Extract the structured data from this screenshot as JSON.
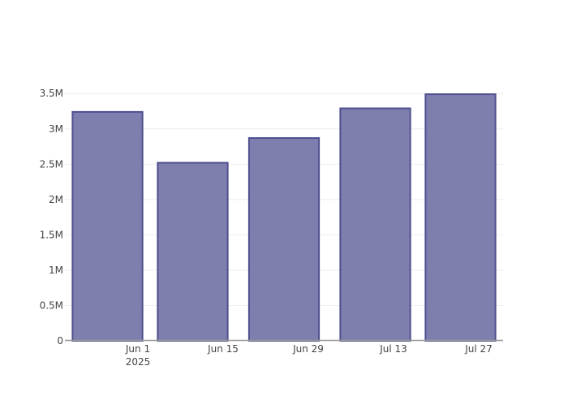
{
  "chart_data": {
    "type": "bar",
    "title": "",
    "xlabel": "",
    "ylabel": "",
    "x": [
      "2025-05-27",
      "2025-06-10",
      "2025-06-25",
      "2025-07-10",
      "2025-07-24"
    ],
    "values": [
      3240000,
      2520000,
      2870000,
      3290000,
      3490000
    ],
    "xlim": [
      "2025-05-20",
      "2025-07-31"
    ],
    "ylim": [
      0,
      3675000
    ],
    "x_ticks": [
      {
        "date": "2025-06-01",
        "label": "Jun 1",
        "sublabel": "2025"
      },
      {
        "date": "2025-06-15",
        "label": "Jun 15"
      },
      {
        "date": "2025-06-29",
        "label": "Jun 29"
      },
      {
        "date": "2025-07-13",
        "label": "Jul 13"
      },
      {
        "date": "2025-07-27",
        "label": "Jul 27"
      }
    ],
    "y_ticks": [
      {
        "value": 0,
        "label": "0"
      },
      {
        "value": 500000,
        "label": "0.5M"
      },
      {
        "value": 1000000,
        "label": "1M"
      },
      {
        "value": 1500000,
        "label": "1.5M"
      },
      {
        "value": 2000000,
        "label": "2M"
      },
      {
        "value": 2500000,
        "label": "2.5M"
      },
      {
        "value": 3000000,
        "label": "3M"
      },
      {
        "value": 3500000,
        "label": "3.5M"
      }
    ],
    "grid": true,
    "colors": {
      "bar_fill": "#7f7faf",
      "bar_stroke": "#4f4f8f",
      "grid": "#eeeeee",
      "axis": "#999999"
    }
  }
}
